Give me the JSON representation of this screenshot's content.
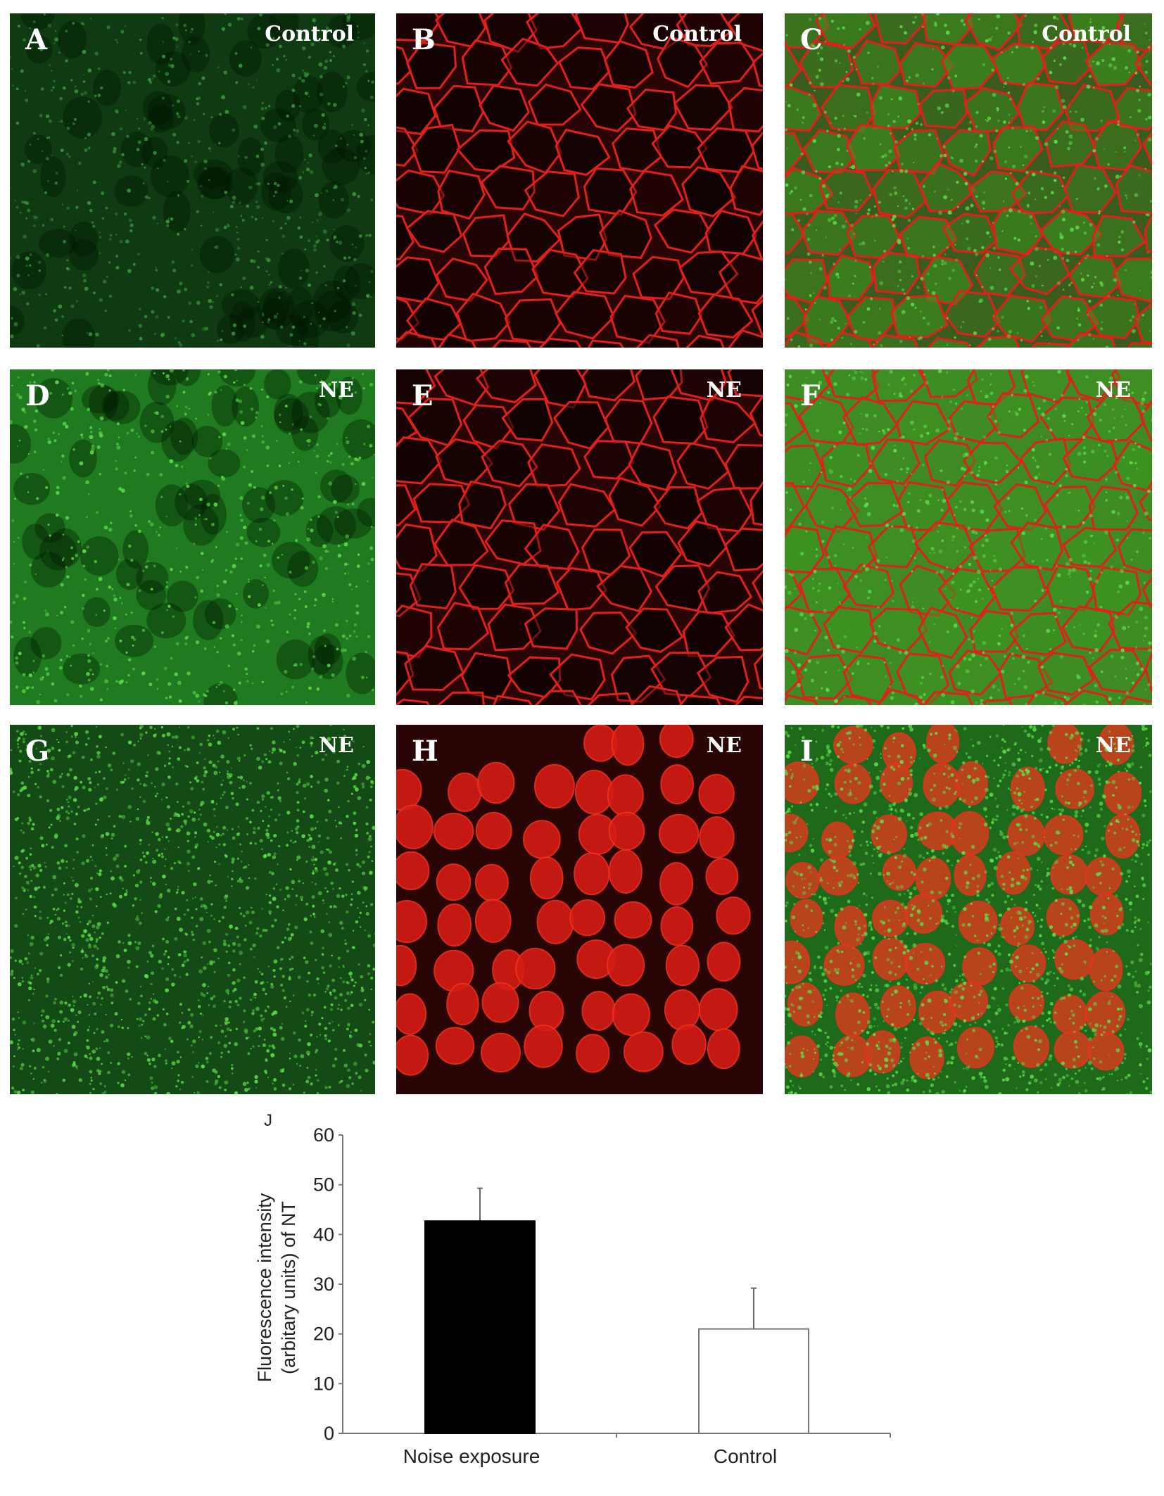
{
  "panels": [
    {
      "letter": "A",
      "condition": "Control",
      "type": "green-diffuse"
    },
    {
      "letter": "B",
      "condition": "Control",
      "type": "red-membrane"
    },
    {
      "letter": "C",
      "condition": "Control",
      "type": "merge-membrane"
    },
    {
      "letter": "D",
      "condition": "NE",
      "type": "green-bright"
    },
    {
      "letter": "E",
      "condition": "NE",
      "type": "red-membrane"
    },
    {
      "letter": "F",
      "condition": "NE",
      "type": "merge-membrane-bright"
    },
    {
      "letter": "G",
      "condition": "NE",
      "type": "green-puncta"
    },
    {
      "letter": "H",
      "condition": "NE",
      "type": "red-nuclei"
    },
    {
      "letter": "I",
      "condition": "NE",
      "type": "merge-nuclei"
    }
  ],
  "colors": {
    "green": "#2fb82a",
    "red": "#e0201a",
    "bar_ne": "#000000",
    "bar_control": "#ffffff"
  },
  "chart_data": {
    "type": "bar",
    "panel_label": "J",
    "categories": [
      "Noise exposure",
      "Control"
    ],
    "values": [
      42.7,
      21.0
    ],
    "error_upper": [
      49.3,
      29.2
    ],
    "ylabel_line1": "Fluorescence intensity",
    "ylabel_line2": "(arbitary units) of NT",
    "xlabel": "",
    "ylim": [
      0,
      60
    ],
    "yticks": [
      "0",
      "10",
      "20",
      "30",
      "40",
      "50",
      "60"
    ],
    "grid": false
  }
}
